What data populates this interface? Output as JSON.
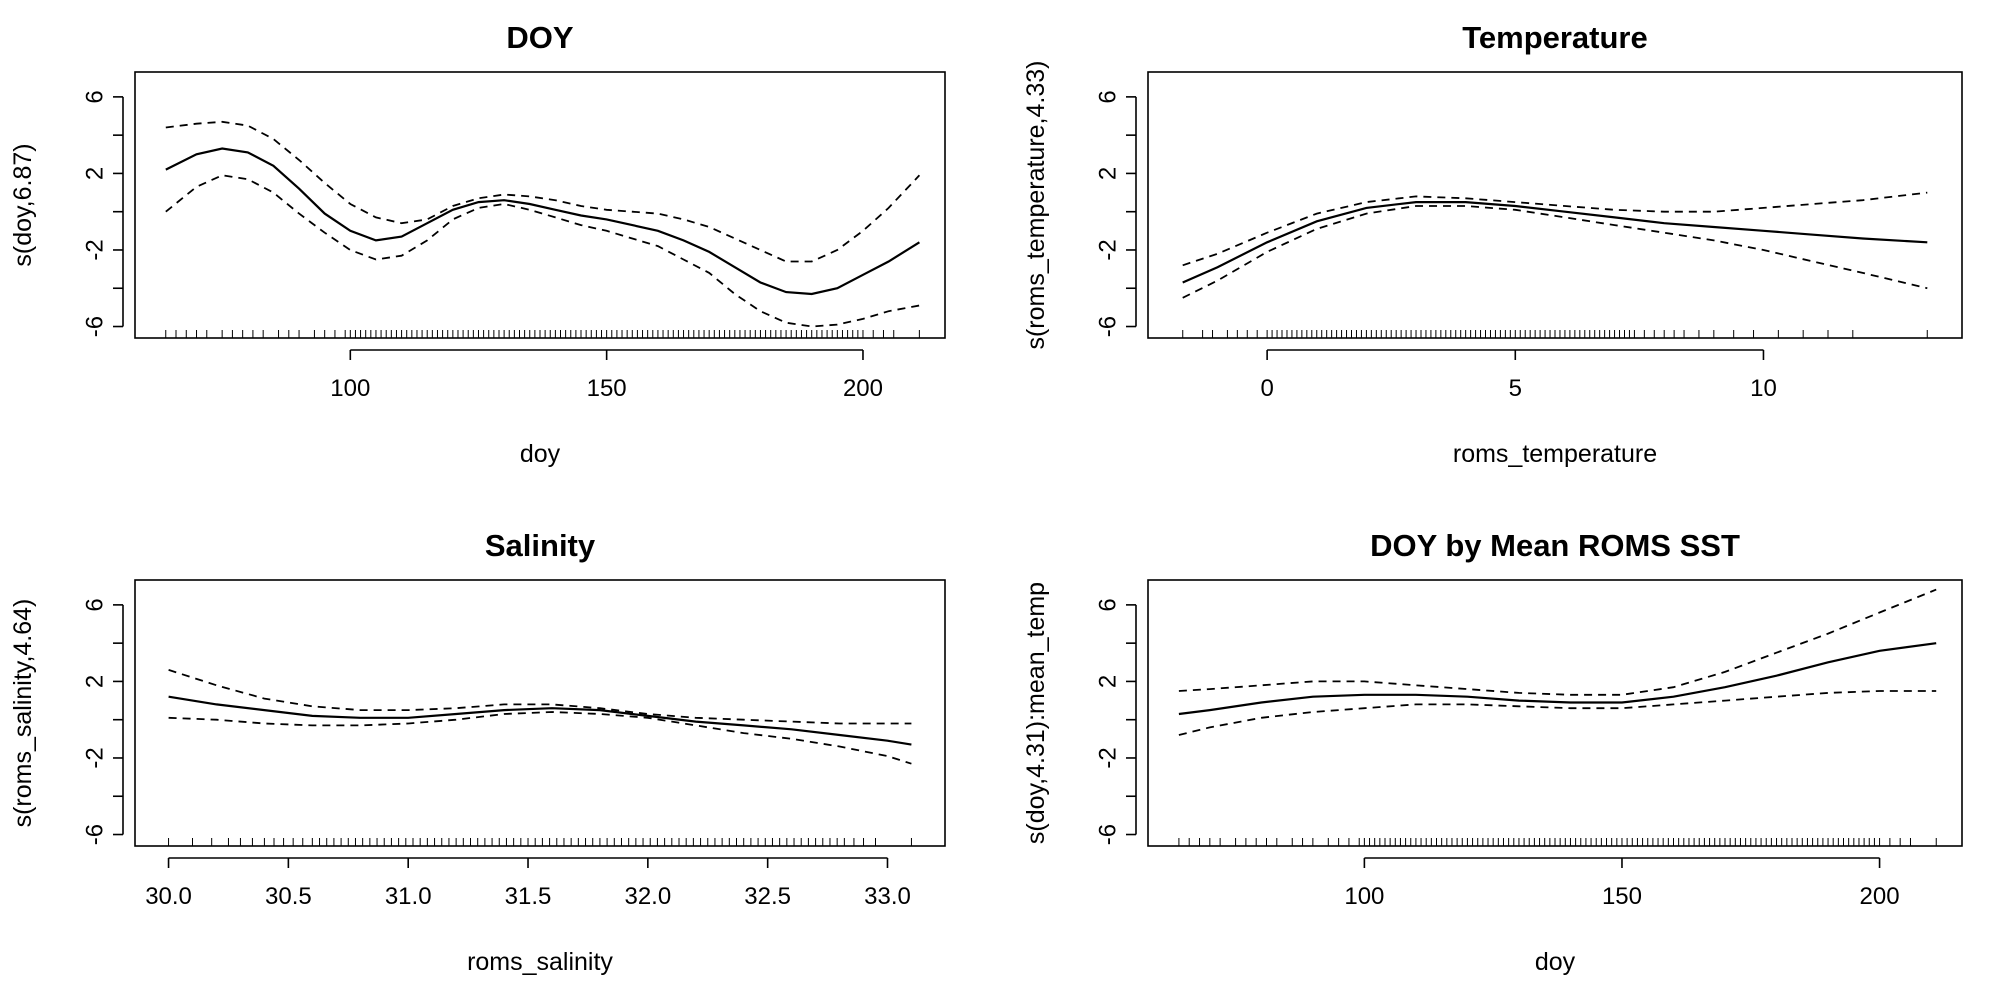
{
  "chart_data": [
    {
      "type": "line",
      "title": "DOY",
      "xlabel": "doy",
      "ylabel": "s(doy,6.87)",
      "xlim": [
        58,
        216
      ],
      "ylim": [
        -6.6,
        7.3
      ],
      "xticks": [
        100,
        150,
        200
      ],
      "xtick_labels": [
        "100",
        "150",
        "200"
      ],
      "yticks": [
        -6,
        -4,
        -2,
        0,
        2,
        4,
        6
      ],
      "ytick_labels": [
        "-6",
        "",
        "-2",
        "",
        "2",
        "",
        "6"
      ],
      "x": [
        64,
        70,
        75,
        80,
        85,
        90,
        95,
        100,
        105,
        110,
        115,
        120,
        125,
        130,
        135,
        140,
        145,
        150,
        155,
        160,
        165,
        170,
        175,
        180,
        185,
        190,
        195,
        200,
        205,
        211
      ],
      "series": [
        {
          "role": "fit",
          "values": [
            2.2,
            3.0,
            3.3,
            3.1,
            2.4,
            1.2,
            -0.1,
            -1.0,
            -1.5,
            -1.3,
            -0.6,
            0.1,
            0.5,
            0.6,
            0.4,
            0.1,
            -0.2,
            -0.4,
            -0.7,
            -1.0,
            -1.5,
            -2.1,
            -2.9,
            -3.7,
            -4.2,
            -4.3,
            -4.0,
            -3.3,
            -2.6,
            -1.6
          ]
        },
        {
          "role": "upper",
          "values": [
            4.4,
            4.6,
            4.7,
            4.5,
            3.8,
            2.7,
            1.5,
            0.4,
            -0.3,
            -0.6,
            -0.4,
            0.3,
            0.7,
            0.9,
            0.8,
            0.6,
            0.3,
            0.1,
            0.0,
            -0.1,
            -0.4,
            -0.8,
            -1.4,
            -2.0,
            -2.6,
            -2.6,
            -2.0,
            -1.0,
            0.2,
            1.9
          ]
        },
        {
          "role": "lower",
          "values": [
            0.0,
            1.3,
            1.9,
            1.7,
            1.0,
            -0.1,
            -1.1,
            -2.0,
            -2.5,
            -2.3,
            -1.5,
            -0.4,
            0.2,
            0.4,
            0.1,
            -0.3,
            -0.7,
            -1.0,
            -1.4,
            -1.8,
            -2.5,
            -3.2,
            -4.3,
            -5.2,
            -5.8,
            -6.0,
            -5.9,
            -5.6,
            -5.2,
            -4.9
          ]
        }
      ],
      "rug": [
        64,
        66,
        68,
        70,
        72,
        75,
        77,
        79,
        81,
        83,
        86,
        88,
        90,
        93,
        95,
        97,
        99,
        100,
        101,
        102,
        103,
        104,
        105,
        106,
        107,
        108,
        109,
        110,
        111,
        112,
        113,
        114,
        115,
        116,
        117,
        118,
        119,
        120,
        121,
        122,
        123,
        124,
        125,
        126,
        127,
        128,
        129,
        130,
        131,
        132,
        133,
        134,
        135,
        136,
        137,
        138,
        139,
        140,
        141,
        142,
        143,
        144,
        145,
        146,
        147,
        148,
        149,
        150,
        151,
        152,
        153,
        154,
        155,
        156,
        157,
        158,
        159,
        160,
        161,
        162,
        163,
        164,
        165,
        166,
        167,
        168,
        169,
        170,
        171,
        172,
        173,
        174,
        175,
        176,
        177,
        178,
        179,
        180,
        181,
        182,
        183,
        184,
        185,
        186,
        187,
        188,
        189,
        190,
        191,
        192,
        193,
        194,
        195,
        196,
        197,
        198,
        199,
        200,
        202,
        204,
        206,
        211
      ]
    },
    {
      "type": "line",
      "title": "Temperature",
      "xlabel": "roms_temperature",
      "ylabel": "s(roms_temperature,4.33)",
      "xlim": [
        -2.4,
        14.0
      ],
      "ylim": [
        -6.6,
        7.3
      ],
      "xticks": [
        0,
        5,
        10
      ],
      "xtick_labels": [
        "0",
        "5",
        "10"
      ],
      "yticks": [
        -6,
        -4,
        -2,
        0,
        2,
        4,
        6
      ],
      "ytick_labels": [
        "-6",
        "",
        "-2",
        "",
        "2",
        "",
        "6"
      ],
      "x": [
        -1.7,
        -1.0,
        0.0,
        1.0,
        2.0,
        3.0,
        4.0,
        5.0,
        6.0,
        7.0,
        8.0,
        9.0,
        10.0,
        11.0,
        12.0,
        13.3
      ],
      "series": [
        {
          "role": "fit",
          "values": [
            -3.7,
            -2.9,
            -1.6,
            -0.5,
            0.2,
            0.5,
            0.5,
            0.3,
            0.0,
            -0.3,
            -0.6,
            -0.8,
            -1.0,
            -1.2,
            -1.4,
            -1.6
          ]
        },
        {
          "role": "upper",
          "values": [
            -2.8,
            -2.2,
            -1.1,
            -0.1,
            0.5,
            0.8,
            0.7,
            0.5,
            0.3,
            0.1,
            0.0,
            0.0,
            0.2,
            0.4,
            0.6,
            1.0
          ]
        },
        {
          "role": "lower",
          "values": [
            -4.5,
            -3.6,
            -2.1,
            -0.9,
            -0.1,
            0.3,
            0.3,
            0.1,
            -0.3,
            -0.7,
            -1.1,
            -1.5,
            -2.0,
            -2.6,
            -3.2,
            -4.0
          ]
        }
      ],
      "rug": [
        -1.7,
        -1.3,
        -1.1,
        -0.8,
        -0.6,
        -0.4,
        -0.2,
        0.0,
        0.1,
        0.2,
        0.3,
        0.4,
        0.5,
        0.6,
        0.7,
        0.8,
        0.9,
        1.0,
        1.1,
        1.2,
        1.3,
        1.4,
        1.5,
        1.6,
        1.7,
        1.8,
        1.9,
        2.0,
        2.1,
        2.2,
        2.3,
        2.4,
        2.5,
        2.6,
        2.7,
        2.8,
        2.9,
        3.0,
        3.1,
        3.2,
        3.3,
        3.4,
        3.5,
        3.6,
        3.7,
        3.8,
        3.9,
        4.0,
        4.1,
        4.2,
        4.3,
        4.4,
        4.5,
        4.6,
        4.7,
        4.8,
        4.9,
        5.0,
        5.1,
        5.2,
        5.3,
        5.4,
        5.5,
        5.6,
        5.7,
        5.8,
        5.9,
        6.0,
        6.1,
        6.2,
        6.3,
        6.4,
        6.5,
        6.6,
        6.7,
        6.8,
        6.9,
        7.0,
        7.1,
        7.2,
        7.3,
        7.4,
        7.6,
        7.8,
        8.0,
        8.2,
        8.4,
        8.7,
        9.0,
        9.4,
        9.8,
        10.3,
        10.8,
        11.3,
        11.8,
        13.3
      ]
    },
    {
      "type": "line",
      "title": "Salinity",
      "xlabel": "roms_salinity",
      "ylabel": "s(roms_salinity,4.64)",
      "xlim": [
        29.86,
        33.24
      ],
      "ylim": [
        -6.6,
        7.3
      ],
      "xticks": [
        30.0,
        30.5,
        31.0,
        31.5,
        32.0,
        32.5,
        33.0
      ],
      "xtick_labels": [
        "30.0",
        "30.5",
        "31.0",
        "31.5",
        "32.0",
        "32.5",
        "33.0"
      ],
      "yticks": [
        -6,
        -4,
        -2,
        0,
        2,
        4,
        6
      ],
      "ytick_labels": [
        "-6",
        "",
        "-2",
        "",
        "2",
        "",
        "6"
      ],
      "x": [
        30.0,
        30.2,
        30.4,
        30.6,
        30.8,
        31.0,
        31.2,
        31.4,
        31.6,
        31.8,
        32.0,
        32.2,
        32.4,
        32.6,
        32.8,
        33.0,
        33.1
      ],
      "series": [
        {
          "role": "fit",
          "values": [
            1.2,
            0.8,
            0.5,
            0.2,
            0.1,
            0.1,
            0.3,
            0.5,
            0.6,
            0.5,
            0.2,
            -0.1,
            -0.3,
            -0.5,
            -0.8,
            -1.1,
            -1.3
          ]
        },
        {
          "role": "upper",
          "values": [
            2.6,
            1.8,
            1.1,
            0.7,
            0.5,
            0.5,
            0.6,
            0.8,
            0.8,
            0.6,
            0.3,
            0.1,
            0.0,
            -0.1,
            -0.2,
            -0.2,
            -0.2
          ]
        },
        {
          "role": "lower",
          "values": [
            0.1,
            0.0,
            -0.2,
            -0.3,
            -0.3,
            -0.2,
            0.0,
            0.3,
            0.4,
            0.3,
            0.1,
            -0.3,
            -0.7,
            -1.0,
            -1.4,
            -1.9,
            -2.3
          ]
        }
      ],
      "rug": [
        30.0,
        30.1,
        30.18,
        30.25,
        30.3,
        30.35,
        30.4,
        30.44,
        30.48,
        30.52,
        30.56,
        30.6,
        30.63,
        30.66,
        30.69,
        30.72,
        30.75,
        30.78,
        30.81,
        30.84,
        30.87,
        30.9,
        30.93,
        30.96,
        30.99,
        31.02,
        31.05,
        31.08,
        31.11,
        31.14,
        31.17,
        31.2,
        31.23,
        31.26,
        31.29,
        31.32,
        31.35,
        31.38,
        31.41,
        31.44,
        31.47,
        31.5,
        31.53,
        31.56,
        31.59,
        31.62,
        31.65,
        31.68,
        31.71,
        31.74,
        31.77,
        31.8,
        31.83,
        31.86,
        31.89,
        31.92,
        31.95,
        31.98,
        32.01,
        32.04,
        32.07,
        32.1,
        32.13,
        32.16,
        32.19,
        32.22,
        32.25,
        32.28,
        32.31,
        32.34,
        32.37,
        32.4,
        32.43,
        32.46,
        32.49,
        32.52,
        32.55,
        32.58,
        32.61,
        32.64,
        32.67,
        32.7,
        32.73,
        32.76,
        32.79,
        32.82,
        32.86,
        32.9,
        32.95,
        33.1
      ]
    },
    {
      "type": "line",
      "title": "DOY by Mean ROMS SST",
      "xlabel": "doy",
      "ylabel": "s(doy,4.31):mean_temp",
      "xlim": [
        58,
        216
      ],
      "ylim": [
        -6.6,
        7.3
      ],
      "xticks": [
        100,
        150,
        200
      ],
      "xtick_labels": [
        "100",
        "150",
        "200"
      ],
      "yticks": [
        -6,
        -4,
        -2,
        0,
        2,
        4,
        6
      ],
      "ytick_labels": [
        "-6",
        "",
        "-2",
        "",
        "2",
        "",
        "6"
      ],
      "x": [
        64,
        70,
        80,
        90,
        100,
        110,
        120,
        130,
        140,
        150,
        160,
        170,
        180,
        190,
        200,
        211
      ],
      "series": [
        {
          "role": "fit",
          "values": [
            0.3,
            0.5,
            0.9,
            1.2,
            1.3,
            1.3,
            1.2,
            1.0,
            0.9,
            0.9,
            1.2,
            1.7,
            2.3,
            3.0,
            3.6,
            4.0
          ]
        },
        {
          "role": "upper",
          "values": [
            1.5,
            1.6,
            1.8,
            2.0,
            2.0,
            1.8,
            1.6,
            1.4,
            1.3,
            1.3,
            1.7,
            2.5,
            3.5,
            4.5,
            5.6,
            6.8
          ]
        },
        {
          "role": "lower",
          "values": [
            -0.8,
            -0.4,
            0.1,
            0.4,
            0.6,
            0.8,
            0.8,
            0.7,
            0.6,
            0.6,
            0.8,
            1.0,
            1.2,
            1.4,
            1.5,
            1.5
          ]
        }
      ],
      "rug": [
        64,
        66,
        68,
        70,
        72,
        75,
        77,
        79,
        81,
        83,
        86,
        88,
        90,
        93,
        95,
        97,
        99,
        100,
        101,
        102,
        103,
        104,
        105,
        106,
        107,
        108,
        109,
        110,
        111,
        112,
        113,
        114,
        115,
        116,
        117,
        118,
        119,
        120,
        121,
        122,
        123,
        124,
        125,
        126,
        127,
        128,
        129,
        130,
        131,
        132,
        133,
        134,
        135,
        136,
        137,
        138,
        139,
        140,
        141,
        142,
        143,
        144,
        145,
        146,
        147,
        148,
        149,
        150,
        151,
        152,
        153,
        154,
        155,
        156,
        157,
        158,
        159,
        160,
        161,
        162,
        163,
        164,
        165,
        166,
        167,
        168,
        169,
        170,
        171,
        172,
        173,
        174,
        175,
        176,
        177,
        178,
        179,
        180,
        181,
        182,
        183,
        184,
        185,
        186,
        187,
        188,
        189,
        190,
        191,
        192,
        193,
        194,
        195,
        196,
        197,
        198,
        199,
        200,
        202,
        204,
        206,
        211
      ]
    }
  ]
}
